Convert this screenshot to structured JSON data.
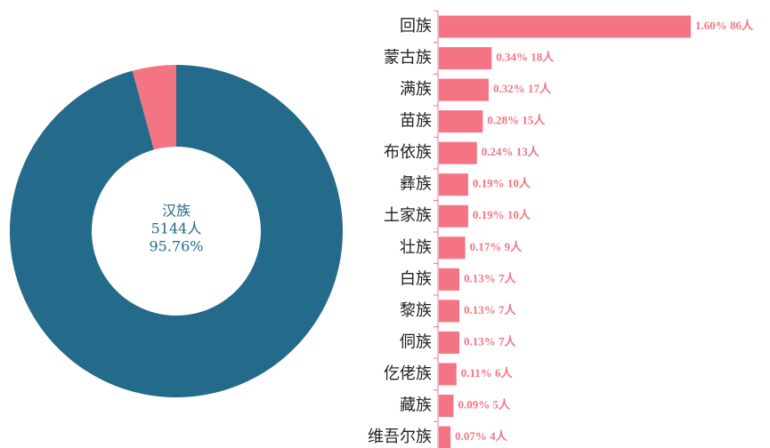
{
  "chart_data": [
    {
      "type": "pie",
      "categories": [
        "汉族",
        null
      ],
      "values": [
        95.76,
        4.24
      ],
      "value_labels": [
        "95.76%",
        null
      ],
      "counts": [
        5144,
        null
      ],
      "count_labels": [
        "5144人",
        null
      ],
      "colors": [
        "#246a8a",
        "#f47483"
      ]
    },
    {
      "type": "bar",
      "orientation": "horizontal",
      "categories": [
        "回族",
        "蒙古族",
        "满族",
        "苗族",
        "布依族",
        "彝族",
        "土家族",
        "壮族",
        "白族",
        "黎族",
        "侗族",
        "仡佬族",
        "藏族",
        "维吾尔族"
      ],
      "values": [
        86,
        18,
        17,
        15,
        13,
        10,
        10,
        9,
        7,
        7,
        7,
        6,
        5,
        4
      ],
      "value_labels": [
        "1.60% 86人",
        "0.34% 18人",
        "0.32% 17人",
        "0.28% 15人",
        "0.24% 13人",
        "0.19% 10人",
        "0.19% 10人",
        "0.17% 9人",
        "0.13% 7人",
        "0.13% 7人",
        "0.13% 7人",
        "0.11% 6人",
        "0.09% 5人",
        "0.07% 4人"
      ],
      "color": "#f47483",
      "xlim": [
        0,
        86
      ]
    }
  ]
}
